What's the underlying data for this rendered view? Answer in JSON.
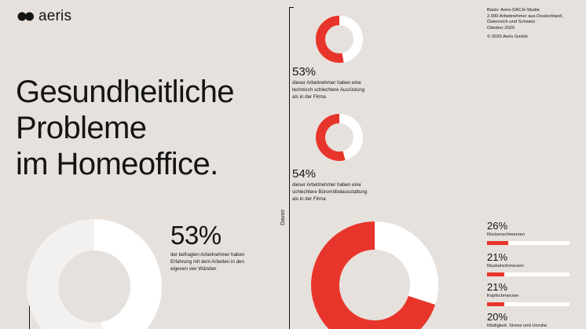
{
  "brand": {
    "name": "aeris"
  },
  "headline": [
    "Gesundheitliche",
    "Probleme",
    "im Homeoffice."
  ],
  "source": {
    "basis": "Basis: Aeris-DACH-Studie\n2.000 Arbeitnehmer aus Deutschland,\nÖsterreich und Schweiz\nOktober 2020",
    "copyright": "© 2020 Aeris GmbH"
  },
  "main_stat": {
    "percent_label": "53%",
    "text": "der befragten Arbeitnehmer haben\nErfahrung mit dem Arbeiten in den\neigenen vier Wänden"
  },
  "davon_label": "Davon",
  "stat_equipment": {
    "percent_label": "53%",
    "text": "dieser Arbeitnehmer haben eine\ntechnisch schlechtere Ausrüstung\nals in der Firma"
  },
  "stat_furniture": {
    "percent_label": "54%",
    "text": "dieser Arbeitnehmer haben eine\nschlechtere Büromöbelausstattung\nals in der Firma"
  },
  "colors": {
    "accent": "#e8352b",
    "ring_background": "#ffffff",
    "ring_main": "#f3f1ef",
    "page": "#e6e1dd"
  },
  "chart_data": [
    {
      "type": "pie",
      "variant": "donut",
      "values": [
        53,
        47
      ]
    },
    {
      "type": "pie",
      "variant": "donut",
      "values": [
        53,
        47
      ]
    },
    {
      "type": "pie",
      "variant": "donut",
      "values": [
        54,
        46
      ]
    },
    {
      "type": "pie",
      "variant": "donut",
      "values": [
        70,
        30
      ]
    },
    {
      "type": "bar",
      "orientation": "horizontal",
      "categories": [
        "Rückenschmerzen",
        "Muskelschmerzen",
        "Kopfschmerzen",
        "Müdigkeit, Stress und Unruhe"
      ],
      "values": [
        26,
        21,
        21,
        20
      ],
      "value_labels": [
        "26%",
        "21%",
        "21%",
        "20%"
      ],
      "xlim": [
        0,
        100
      ]
    }
  ]
}
